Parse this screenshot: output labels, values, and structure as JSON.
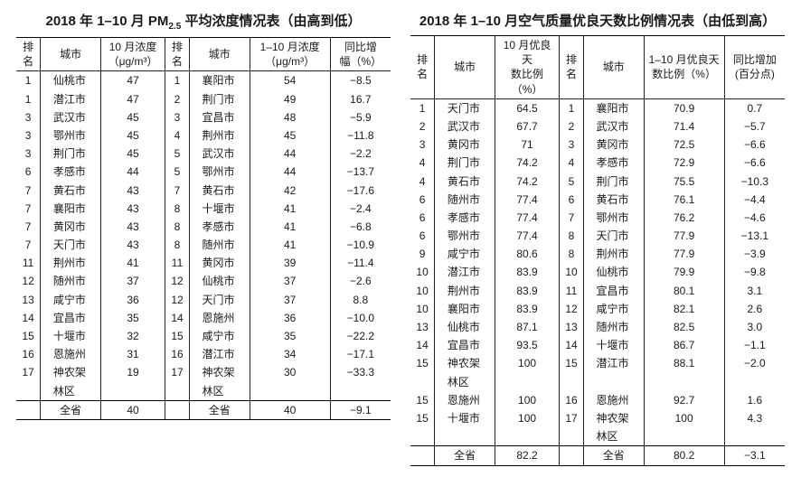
{
  "left": {
    "title_parts": [
      "2018 年 1–10 月 PM",
      "2.5",
      " 平均浓度情况表（由高到低）"
    ],
    "headers": {
      "rank1": "排名",
      "city1": "城市",
      "val1_lines": [
        "10 月浓度",
        "（μg/m³）"
      ],
      "rank2": "排名",
      "city2": "城市",
      "val2_lines": [
        "1–10 月浓度",
        "（μg/m³）"
      ],
      "diff_lines": [
        "同比增",
        "幅（%）"
      ]
    },
    "rows": [
      {
        "r1": "1",
        "c1": "仙桃市",
        "v1": "47",
        "r2": "1",
        "c2": "襄阳市",
        "v2": "54",
        "d": "−8.5"
      },
      {
        "r1": "1",
        "c1": "潜江市",
        "v1": "47",
        "r2": "2",
        "c2": "荆门市",
        "v2": "49",
        "d": "16.7"
      },
      {
        "r1": "3",
        "c1": "武汉市",
        "v1": "45",
        "r2": "3",
        "c2": "宜昌市",
        "v2": "48",
        "d": "−5.9"
      },
      {
        "r1": "3",
        "c1": "鄂州市",
        "v1": "45",
        "r2": "4",
        "c2": "荆州市",
        "v2": "45",
        "d": "−11.8"
      },
      {
        "r1": "3",
        "c1": "荆门市",
        "v1": "45",
        "r2": "5",
        "c2": "武汉市",
        "v2": "44",
        "d": "−2.2"
      },
      {
        "r1": "6",
        "c1": "孝感市",
        "v1": "44",
        "r2": "5",
        "c2": "鄂州市",
        "v2": "44",
        "d": "−13.7"
      },
      {
        "r1": "7",
        "c1": "黄石市",
        "v1": "43",
        "r2": "7",
        "c2": "黄石市",
        "v2": "42",
        "d": "−17.6"
      },
      {
        "r1": "7",
        "c1": "襄阳市",
        "v1": "43",
        "r2": "8",
        "c2": "十堰市",
        "v2": "41",
        "d": "−2.4"
      },
      {
        "r1": "7",
        "c1": "黄冈市",
        "v1": "43",
        "r2": "8",
        "c2": "孝感市",
        "v2": "41",
        "d": "−6.8"
      },
      {
        "r1": "7",
        "c1": "天门市",
        "v1": "43",
        "r2": "8",
        "c2": "随州市",
        "v2": "41",
        "d": "−10.9"
      },
      {
        "r1": "11",
        "c1": "荆州市",
        "v1": "41",
        "r2": "11",
        "c2": "黄冈市",
        "v2": "39",
        "d": "−11.4"
      },
      {
        "r1": "12",
        "c1": "随州市",
        "v1": "37",
        "r2": "12",
        "c2": "仙桃市",
        "v2": "37",
        "d": "−2.6"
      },
      {
        "r1": "13",
        "c1": "咸宁市",
        "v1": "36",
        "r2": "12",
        "c2": "天门市",
        "v2": "37",
        "d": "8.8"
      },
      {
        "r1": "14",
        "c1": "宜昌市",
        "v1": "35",
        "r2": "14",
        "c2": "恩施州",
        "v2": "36",
        "d": "−10.0"
      },
      {
        "r1": "15",
        "c1": "十堰市",
        "v1": "32",
        "r2": "15",
        "c2": "咸宁市",
        "v2": "35",
        "d": "−22.2"
      },
      {
        "r1": "16",
        "c1": "恩施州",
        "v1": "31",
        "r2": "16",
        "c2": "潜江市",
        "v2": "34",
        "d": "−17.1"
      },
      {
        "r1": "17",
        "c1": "神农架",
        "v1": "19",
        "r2": "17",
        "c2": "神农架",
        "v2": "30",
        "d": "−33.3"
      },
      {
        "r1": "",
        "c1": "林区",
        "v1": "",
        "r2": "",
        "c2": "林区",
        "v2": "",
        "d": ""
      }
    ],
    "footer": {
      "label": "全省",
      "v1": "40",
      "label2": "全省",
      "v2": "40",
      "d": "−9.1"
    }
  },
  "right": {
    "title": "2018 年 1–10 月空气质量优良天数比例情况表（由低到高）",
    "headers": {
      "rank1": "排名",
      "city1": "城市",
      "val1_lines": [
        "10 月优良天",
        "数比例（%）"
      ],
      "rank2": "排名",
      "city2": "城市",
      "val2_lines": [
        "1–10 月优良天",
        "数比例（%）"
      ],
      "diff_lines": [
        "同比增加",
        "(百分点)"
      ]
    },
    "rows": [
      {
        "r1": "1",
        "c1": "天门市",
        "v1": "64.5",
        "r2": "1",
        "c2": "襄阳市",
        "v2": "70.9",
        "d": "0.7"
      },
      {
        "r1": "2",
        "c1": "武汉市",
        "v1": "67.7",
        "r2": "2",
        "c2": "武汉市",
        "v2": "71.4",
        "d": "−5.7"
      },
      {
        "r1": "3",
        "c1": "黄冈市",
        "v1": "71",
        "r2": "3",
        "c2": "黄冈市",
        "v2": "72.5",
        "d": "−6.6"
      },
      {
        "r1": "4",
        "c1": "荆门市",
        "v1": "74.2",
        "r2": "4",
        "c2": "孝感市",
        "v2": "72.9",
        "d": "−6.6"
      },
      {
        "r1": "4",
        "c1": "黄石市",
        "v1": "74.2",
        "r2": "5",
        "c2": "荆门市",
        "v2": "75.5",
        "d": "−10.3"
      },
      {
        "r1": "6",
        "c1": "随州市",
        "v1": "77.4",
        "r2": "6",
        "c2": "黄石市",
        "v2": "76.1",
        "d": "−4.4"
      },
      {
        "r1": "6",
        "c1": "孝感市",
        "v1": "77.4",
        "r2": "7",
        "c2": "鄂州市",
        "v2": "76.2",
        "d": "−4.6"
      },
      {
        "r1": "6",
        "c1": "鄂州市",
        "v1": "77.4",
        "r2": "8",
        "c2": "天门市",
        "v2": "77.9",
        "d": "−13.1"
      },
      {
        "r1": "9",
        "c1": "咸宁市",
        "v1": "80.6",
        "r2": "8",
        "c2": "荆州市",
        "v2": "77.9",
        "d": "−3.9"
      },
      {
        "r1": "10",
        "c1": "潜江市",
        "v1": "83.9",
        "r2": "10",
        "c2": "仙桃市",
        "v2": "79.9",
        "d": "−9.8"
      },
      {
        "r1": "10",
        "c1": "荆州市",
        "v1": "83.9",
        "r2": "11",
        "c2": "宜昌市",
        "v2": "80.1",
        "d": "3.1"
      },
      {
        "r1": "10",
        "c1": "襄阳市",
        "v1": "83.9",
        "r2": "12",
        "c2": "咸宁市",
        "v2": "82.1",
        "d": "2.6"
      },
      {
        "r1": "13",
        "c1": "仙桃市",
        "v1": "87.1",
        "r2": "13",
        "c2": "随州市",
        "v2": "82.5",
        "d": "3.0"
      },
      {
        "r1": "14",
        "c1": "宜昌市",
        "v1": "93.5",
        "r2": "14",
        "c2": "十堰市",
        "v2": "86.7",
        "d": "−1.1"
      },
      {
        "r1": "15",
        "c1": "神农架",
        "v1": "100",
        "r2": "15",
        "c2": "潜江市",
        "v2": "88.1",
        "d": "−2.0"
      },
      {
        "r1": "",
        "c1": "林区",
        "v1": "",
        "r2": "",
        "c2": "",
        "v2": "",
        "d": ""
      },
      {
        "r1": "15",
        "c1": "恩施州",
        "v1": "100",
        "r2": "16",
        "c2": "恩施州",
        "v2": "92.7",
        "d": "1.6"
      },
      {
        "r1": "15",
        "c1": "十堰市",
        "v1": "100",
        "r2": "17",
        "c2": "神农架",
        "v2": "100",
        "d": "4.3"
      },
      {
        "r1": "",
        "c1": "",
        "v1": "",
        "r2": "",
        "c2": "林区",
        "v2": "",
        "d": ""
      }
    ],
    "footer": {
      "label": "全省",
      "v1": "82.2",
      "label2": "全省",
      "v2": "80.2",
      "d": "−3.1"
    }
  }
}
